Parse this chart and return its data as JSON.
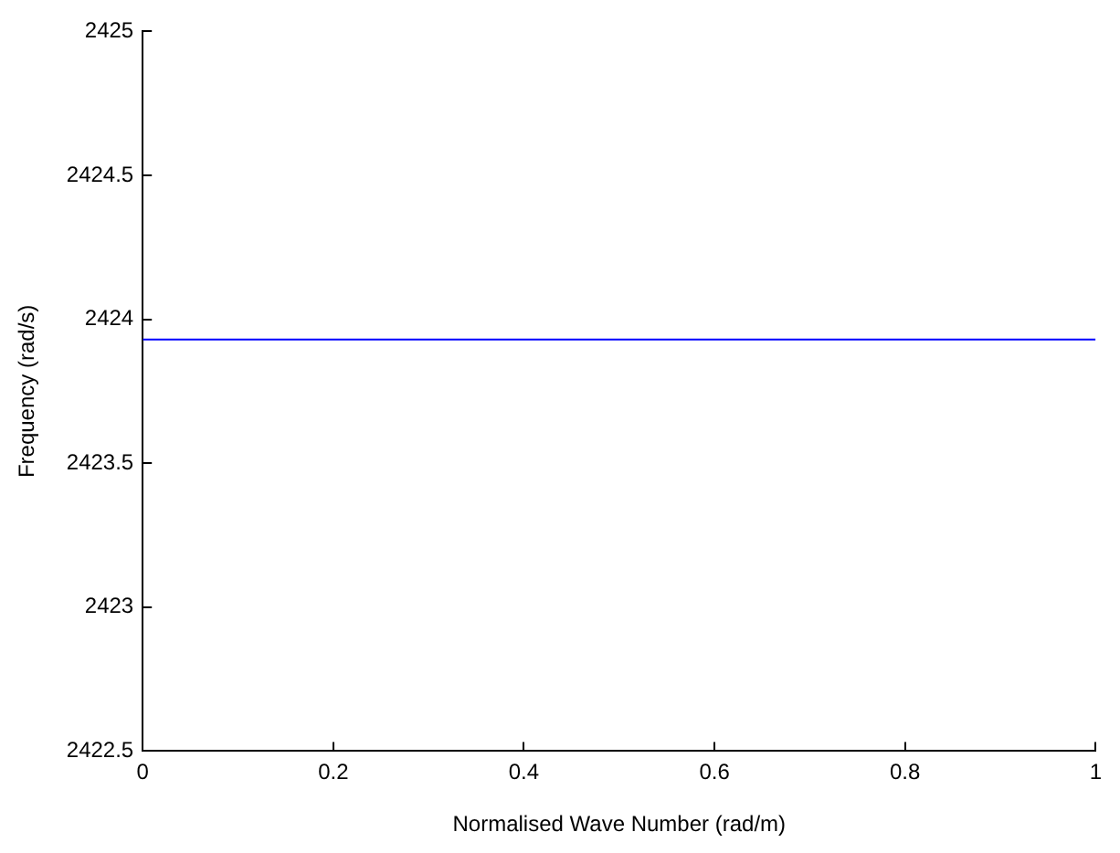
{
  "chart_data": {
    "type": "line",
    "xlabel": "Normalised Wave Number (rad/m)",
    "ylabel": "Frequency (rad/s)",
    "x": [
      0,
      1
    ],
    "series": [
      {
        "color": "#0000ff",
        "values": [
          2423.93,
          2423.93
        ]
      }
    ],
    "xlim": [
      0,
      1
    ],
    "xticks": [
      0,
      0.2,
      0.4,
      0.6,
      0.8,
      1
    ],
    "ylim": [
      2422.5,
      2425
    ],
    "yticks": [
      2422.5,
      2423,
      2423.5,
      2424,
      2424.5,
      2425
    ],
    "grid": false,
    "legend": false,
    "marker": "none",
    "line_style": "solid"
  }
}
